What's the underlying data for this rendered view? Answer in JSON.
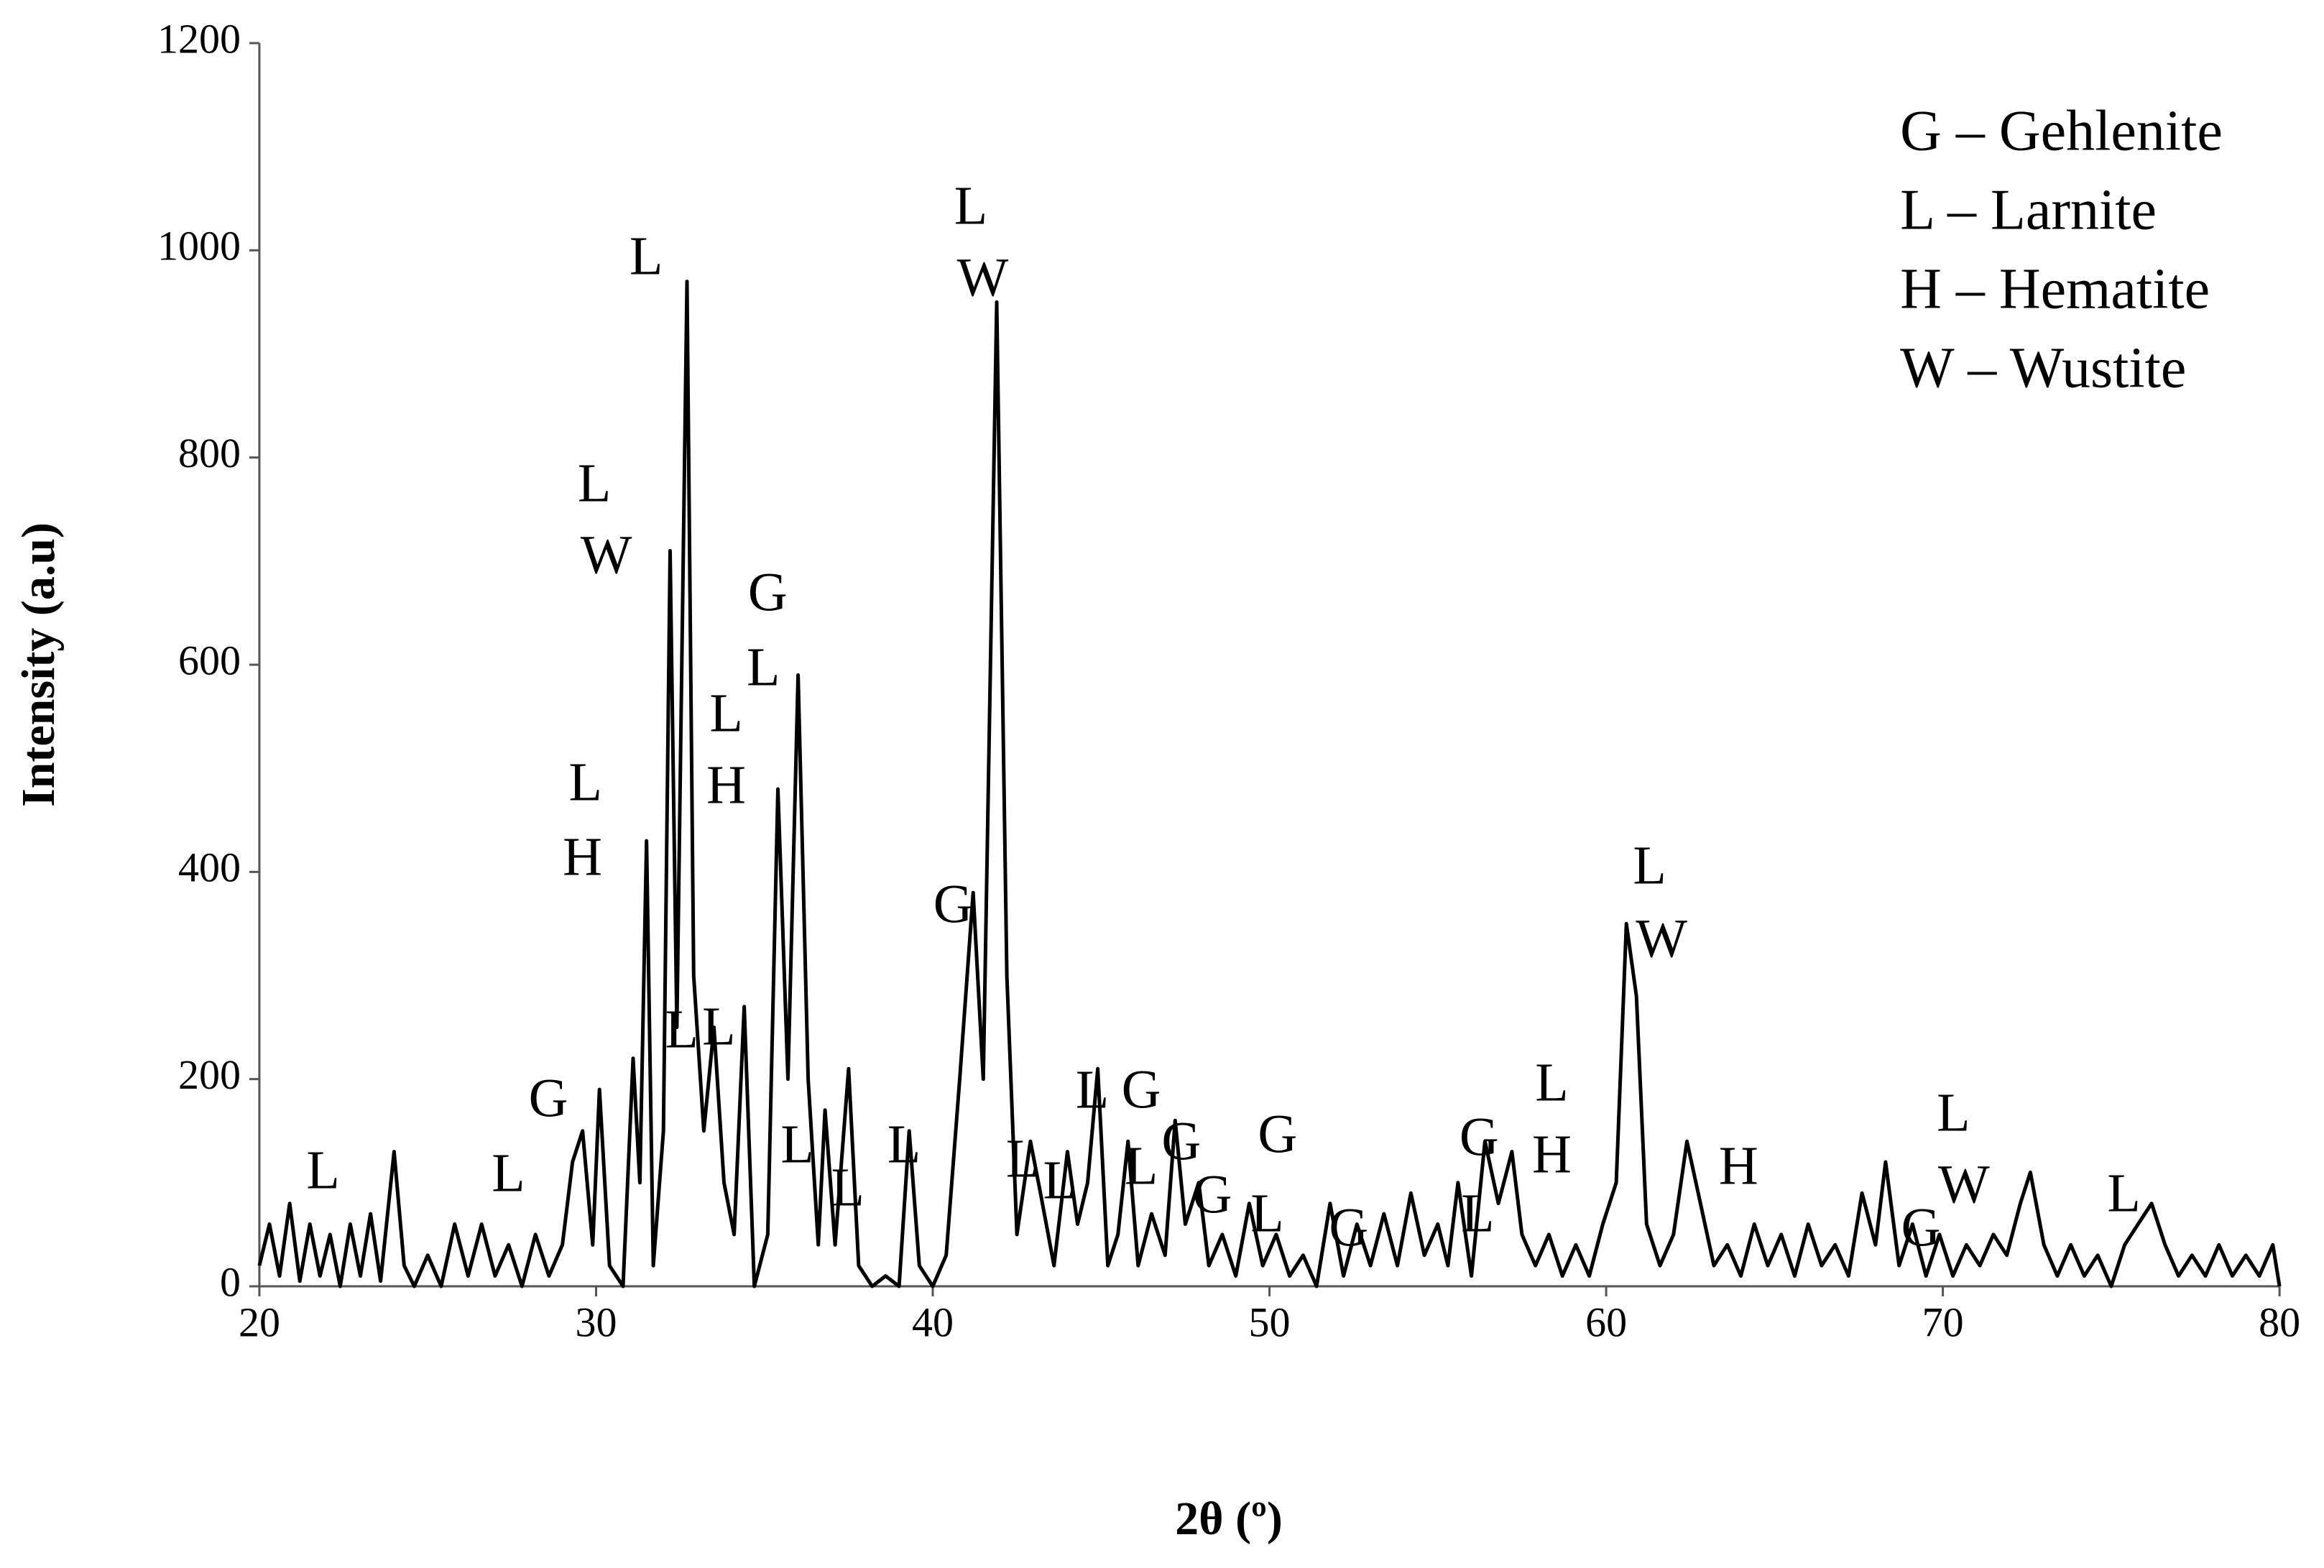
{
  "chart_data": {
    "type": "line",
    "xlabel": "2θ (º)",
    "ylabel": "Intensity (a.u)",
    "xlim": [
      20,
      80
    ],
    "xticks": [
      20,
      30,
      40,
      50,
      60,
      70,
      80
    ],
    "ylim": [
      0,
      1200
    ],
    "yticks": [
      0,
      200,
      400,
      600,
      800,
      1000,
      1200
    ],
    "color": "#000000",
    "legend": [
      "G – Gehlenite",
      "L – Larnite",
      "H – Hematite",
      "W – Wustite"
    ],
    "annotations": [
      "L",
      "L",
      "G",
      "L",
      "H",
      "L",
      "W",
      "L",
      "L",
      "L",
      "G",
      "L",
      "L",
      "H",
      "L",
      "L",
      "L",
      "G",
      "L",
      "W",
      "L",
      "L",
      "L",
      "G",
      "L",
      "G",
      "G",
      "G",
      "L",
      "G",
      "G",
      "L",
      "L",
      "H",
      "L",
      "W",
      "H",
      "L",
      "W",
      "G",
      "L"
    ],
    "x": [
      20,
      20.3,
      20.6,
      20.9,
      21.2,
      21.5,
      21.8,
      22.1,
      22.4,
      22.7,
      23,
      23.3,
      23.6,
      24,
      24.3,
      24.6,
      25,
      25.4,
      25.8,
      26.2,
      26.6,
      27,
      27.4,
      27.8,
      28.2,
      28.6,
      29,
      29.3,
      29.6,
      29.9,
      30.1,
      30.4,
      30.8,
      31.1,
      31.3,
      31.5,
      31.7,
      32,
      32.2,
      32.4,
      32.7,
      32.9,
      33.2,
      33.5,
      33.8,
      34.1,
      34.4,
      34.7,
      35.1,
      35.4,
      35.7,
      36,
      36.3,
      36.6,
      36.8,
      37.1,
      37.5,
      37.8,
      38.2,
      38.6,
      39,
      39.3,
      39.6,
      40,
      40.4,
      40.8,
      41.2,
      41.5,
      41.9,
      42.2,
      42.5,
      42.9,
      43.2,
      43.6,
      44,
      44.3,
      44.6,
      44.9,
      45.2,
      45.5,
      45.8,
      46.1,
      46.5,
      46.9,
      47.2,
      47.5,
      47.9,
      48.2,
      48.6,
      49,
      49.4,
      49.8,
      50.2,
      50.6,
      51,
      51.4,
      51.8,
      52.2,
      52.6,
      53,
      53.4,
      53.8,
      54.2,
      54.6,
      55,
      55.3,
      55.6,
      56,
      56.4,
      56.8,
      57.2,
      57.5,
      57.9,
      58.3,
      58.7,
      59.1,
      59.5,
      59.9,
      60.3,
      60.6,
      60.9,
      61.2,
      61.6,
      62,
      62.4,
      62.8,
      63.2,
      63.6,
      64,
      64.4,
      64.8,
      65.2,
      65.6,
      66,
      66.4,
      66.8,
      67.2,
      67.6,
      68,
      68.3,
      68.7,
      69.1,
      69.5,
      69.9,
      70.3,
      70.7,
      71.1,
      71.5,
      71.9,
      72.3,
      72.6,
      73,
      73.4,
      73.8,
      74.2,
      74.6,
      75,
      75.4,
      75.8,
      76.2,
      76.6,
      77,
      77.4,
      77.8,
      78.2,
      78.6,
      79,
      79.4,
      79.8,
      80
    ],
    "values": [
      20,
      60,
      10,
      80,
      5,
      60,
      10,
      50,
      0,
      60,
      10,
      70,
      5,
      130,
      20,
      0,
      30,
      0,
      60,
      10,
      60,
      10,
      40,
      0,
      50,
      10,
      40,
      120,
      150,
      40,
      190,
      20,
      0,
      220,
      100,
      430,
      20,
      150,
      710,
      250,
      970,
      300,
      150,
      250,
      100,
      50,
      270,
      0,
      50,
      480,
      200,
      590,
      200,
      40,
      170,
      40,
      210,
      20,
      0,
      10,
      0,
      150,
      20,
      0,
      30,
      200,
      380,
      200,
      950,
      300,
      50,
      140,
      90,
      20,
      130,
      60,
      100,
      210,
      20,
      50,
      140,
      20,
      70,
      30,
      160,
      60,
      100,
      20,
      50,
      10,
      80,
      20,
      50,
      10,
      30,
      0,
      80,
      10,
      60,
      20,
      70,
      20,
      90,
      30,
      60,
      20,
      100,
      10,
      140,
      80,
      130,
      50,
      20,
      50,
      10,
      40,
      10,
      60,
      100,
      350,
      280,
      60,
      20,
      50,
      140,
      80,
      20,
      40,
      10,
      60,
      20,
      50,
      10,
      60,
      20,
      40,
      10,
      90,
      40,
      120,
      20,
      60,
      10,
      50,
      10,
      40,
      20,
      50,
      30,
      80,
      110,
      40,
      10,
      40,
      10,
      30,
      0,
      40,
      60,
      80,
      40,
      10,
      30,
      10,
      40,
      10,
      30,
      10,
      40,
      0
    ]
  }
}
